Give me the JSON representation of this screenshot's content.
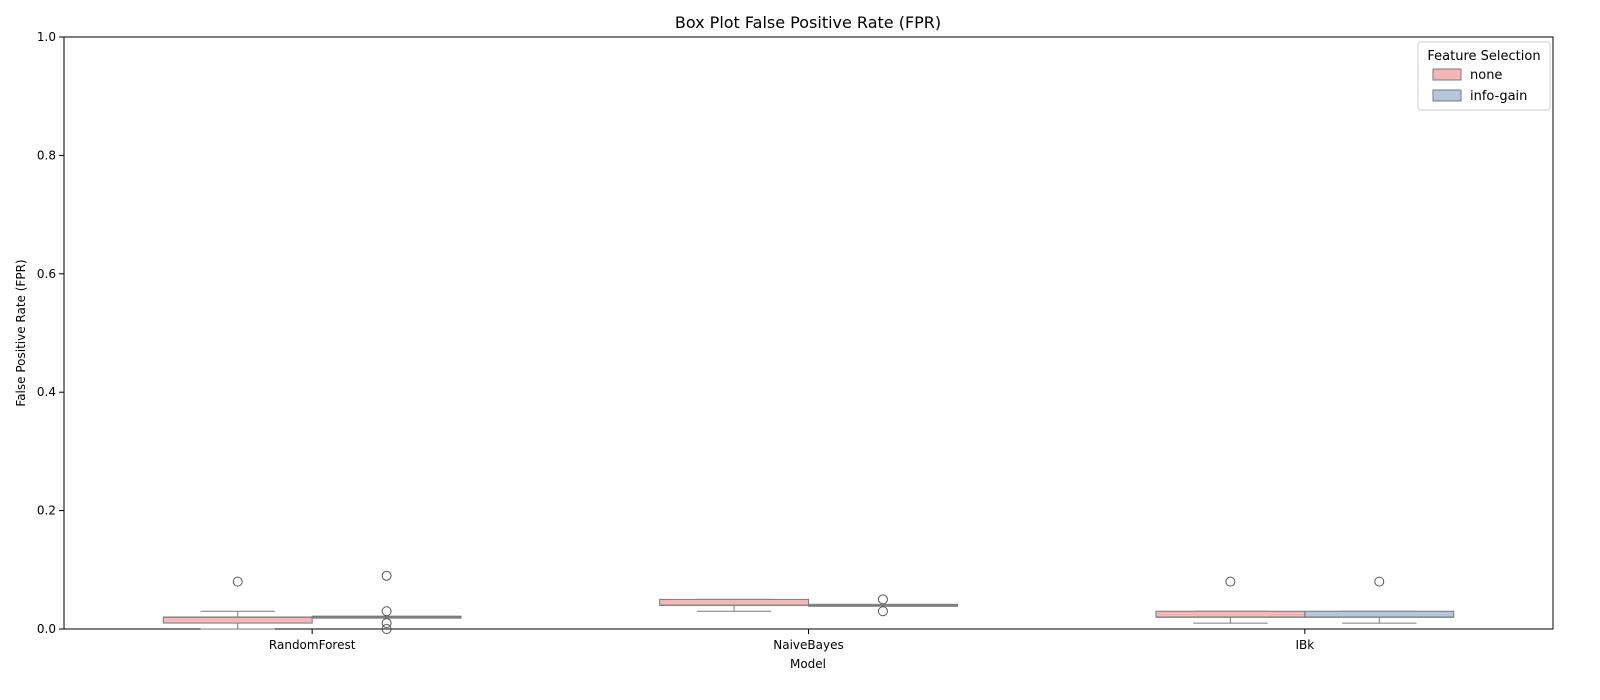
{
  "chart_data": {
    "type": "box",
    "title": "Box Plot False Positive Rate (FPR)",
    "xlabel": "Model",
    "ylabel": "False Positive Rate (FPR)",
    "ylim": [
      0,
      1
    ],
    "yticks": [
      "0.0",
      "0.2",
      "0.4",
      "0.6",
      "0.8",
      "1.0"
    ],
    "categories": [
      "RandomForest",
      "NaiveBayes",
      "IBk"
    ],
    "legend": {
      "title": "Feature Selection",
      "position": "top-right"
    },
    "series": [
      {
        "name": "none",
        "color": "#f4b6b6",
        "boxes": [
          {
            "whisker_low": 0.0,
            "q1": 0.01,
            "median": 0.02,
            "q3": 0.02,
            "whisker_high": 0.03,
            "outliers": [
              0.08
            ]
          },
          {
            "whisker_low": 0.03,
            "q1": 0.04,
            "median": 0.04,
            "q3": 0.05,
            "whisker_high": 0.05,
            "outliers": []
          },
          {
            "whisker_low": 0.01,
            "q1": 0.02,
            "median": 0.02,
            "q3": 0.03,
            "whisker_high": 0.03,
            "outliers": [
              0.08
            ]
          }
        ]
      },
      {
        "name": "info-gain",
        "color": "#b3c8dd",
        "boxes": [
          {
            "whisker_low": 0.02,
            "q1": 0.02,
            "median": 0.02,
            "q3": 0.02,
            "whisker_high": 0.02,
            "outliers": [
              0.0,
              0.01,
              0.03,
              0.09
            ]
          },
          {
            "whisker_low": 0.04,
            "q1": 0.04,
            "median": 0.04,
            "q3": 0.04,
            "whisker_high": 0.04,
            "outliers": [
              0.03,
              0.05
            ]
          },
          {
            "whisker_low": 0.01,
            "q1": 0.02,
            "median": 0.02,
            "q3": 0.03,
            "whisker_high": 0.03,
            "outliers": [
              0.08
            ]
          }
        ]
      }
    ]
  }
}
